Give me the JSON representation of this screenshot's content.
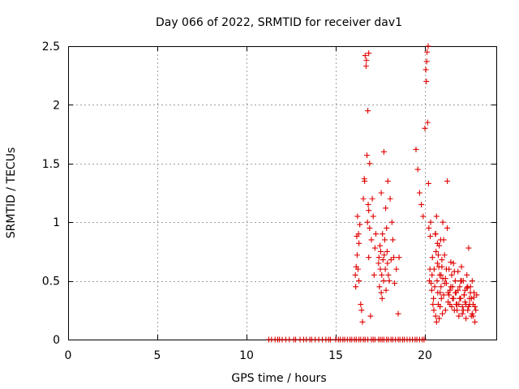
{
  "chart_data": {
    "type": "scatter",
    "title": "Day 066 of 2022, SRMTID for receiver dav1",
    "xlabel": "GPS time / hours",
    "ylabel": "SRMTID / TECUs",
    "xlim": [
      0,
      24
    ],
    "ylim": [
      0,
      2.5
    ],
    "xticks": [
      0,
      5,
      10,
      15,
      20
    ],
    "yticks": [
      0,
      0.5,
      1,
      1.5,
      2,
      2.5
    ],
    "xtick_labels": [
      "0",
      "5",
      "10",
      "15",
      "20"
    ],
    "ytick_labels": [
      "0",
      "0.5",
      "1",
      "1.5",
      "2",
      "2.5"
    ],
    "grid": true,
    "marker": "plus",
    "series": [
      {
        "name": "dav1",
        "color": "#e00000",
        "x": [
          11.25,
          11.4,
          11.6,
          11.75,
          11.85,
          12.0,
          12.2,
          12.4,
          12.65,
          12.75,
          13.0,
          13.2,
          13.35,
          13.55,
          13.65,
          13.85,
          14.05,
          14.25,
          14.45,
          14.6,
          14.7,
          15.0,
          15.15,
          15.25,
          15.4,
          15.5,
          15.65,
          15.8,
          15.9,
          16.05,
          16.15,
          16.3,
          16.4,
          16.55,
          16.65,
          16.8,
          17.0,
          17.1,
          17.2,
          17.4,
          17.5,
          17.6,
          17.7,
          17.85,
          17.95,
          18.1,
          18.2,
          18.35,
          18.5,
          18.6,
          18.75,
          18.85,
          19.0,
          19.15,
          19.3,
          19.45,
          19.55,
          19.7,
          19.85,
          19.95,
          16.1,
          16.12,
          16.15,
          16.18,
          16.2,
          16.22,
          16.25,
          16.28,
          16.3,
          16.3,
          16.35,
          16.4,
          16.45,
          16.5,
          16.55,
          16.6,
          16.62,
          16.65,
          16.7,
          16.72,
          16.75,
          16.78,
          16.8,
          16.82,
          16.85,
          16.85,
          16.85,
          16.9,
          16.9,
          16.95,
          17.0,
          17.05,
          17.1,
          17.15,
          17.2,
          17.25,
          17.4,
          17.42,
          17.45,
          17.48,
          17.5,
          17.52,
          17.55,
          17.55,
          17.58,
          17.6,
          17.62,
          17.65,
          17.68,
          17.7,
          17.72,
          17.75,
          17.78,
          17.8,
          17.82,
          17.85,
          17.88,
          17.9,
          17.92,
          17.95,
          18.0,
          18.05,
          18.1,
          18.15,
          18.2,
          18.25,
          18.3,
          18.4,
          18.5,
          18.55,
          19.5,
          19.6,
          19.7,
          19.8,
          19.9,
          20.0,
          20.05,
          20.08,
          20.1,
          20.12,
          20.15,
          20.18,
          20.2,
          20.22,
          20.25,
          20.28,
          20.3,
          20.32,
          20.35,
          20.38,
          20.4,
          20.42,
          20.45,
          20.48,
          20.5,
          20.52,
          20.55,
          20.58,
          20.6,
          20.62,
          20.65,
          20.68,
          20.7,
          20.72,
          20.75,
          20.78,
          20.8,
          20.82,
          20.85,
          20.88,
          20.9,
          20.92,
          20.95,
          20.98,
          21.0,
          21.05,
          21.1,
          21.15,
          21.2,
          21.25,
          21.3,
          21.35,
          21.4,
          21.45,
          21.5,
          21.55,
          21.6,
          21.65,
          21.7,
          21.75,
          21.8,
          21.85,
          21.9,
          21.95,
          22.0,
          22.05,
          22.1,
          22.15,
          22.2,
          22.25,
          22.3,
          22.35,
          22.4,
          22.45,
          22.5,
          22.55,
          22.6,
          22.65,
          22.7,
          22.75,
          22.8,
          22.85,
          22.9,
          20.6,
          20.7,
          20.8,
          20.9,
          21.0,
          21.1,
          21.2,
          21.3,
          21.4,
          21.5,
          21.6,
          21.7,
          21.8,
          21.9,
          22.0,
          22.1,
          22.2,
          22.3,
          22.4,
          22.5,
          22.6,
          22.7,
          22.8,
          20.65,
          20.75,
          20.85,
          20.95,
          21.05,
          21.15,
          21.25,
          21.35,
          21.45,
          21.55,
          21.65,
          21.75,
          21.85,
          21.95,
          22.05,
          22.15,
          22.25,
          22.35,
          22.45,
          22.55,
          22.65,
          22.75
        ],
        "y": [
          0,
          0,
          0,
          0,
          0,
          0,
          0,
          0,
          0,
          0,
          0,
          0,
          0,
          0,
          0,
          0,
          0,
          0,
          0,
          0,
          0,
          0,
          0,
          0,
          0,
          0,
          0,
          0,
          0,
          0,
          0,
          0,
          0,
          0,
          0,
          0,
          0,
          0,
          0,
          0,
          0,
          0,
          0,
          0,
          0,
          0,
          0,
          0,
          0,
          0,
          0,
          0,
          0,
          0,
          0,
          0,
          0,
          0,
          0,
          0,
          0.55,
          0.45,
          0.62,
          0.88,
          0.72,
          1.05,
          0.6,
          0.9,
          0.5,
          0.82,
          0.98,
          0.3,
          0.25,
          0.15,
          1.2,
          1.37,
          1.35,
          2.42,
          2.33,
          2.38,
          1.57,
          1.0,
          1.95,
          1.15,
          0.7,
          1.1,
          2.44,
          1.5,
          0.95,
          0.2,
          0.85,
          1.2,
          1.05,
          0.55,
          0.78,
          0.9,
          0.65,
          0.7,
          0.45,
          0.8,
          0.6,
          0.75,
          0.4,
          1.25,
          0.55,
          0.35,
          0.9,
          0.68,
          0.5,
          1.6,
          0.72,
          0.85,
          0.6,
          1.12,
          0.42,
          0.95,
          0.75,
          0.65,
          1.35,
          0.55,
          0.5,
          1.2,
          0.68,
          1.0,
          0.85,
          0.7,
          0.48,
          0.6,
          0.22,
          0.7,
          1.62,
          1.45,
          1.25,
          1.15,
          1.05,
          1.8,
          2.3,
          2.2,
          2.37,
          2.45,
          1.85,
          2.5,
          1.33,
          0.95,
          0.5,
          0.6,
          0.88,
          1.0,
          0.48,
          0.42,
          0.55,
          0.7,
          0.3,
          0.35,
          0.25,
          0.6,
          0.45,
          0.9,
          0.2,
          0.75,
          0.15,
          0.5,
          0.82,
          0.4,
          0.3,
          0.62,
          0.18,
          0.55,
          0.28,
          0.85,
          0.45,
          0.35,
          0.68,
          0.22,
          0.52,
          0.38,
          0.72,
          0.25,
          0.48,
          1.35,
          0.4,
          0.6,
          0.3,
          0.45,
          0.55,
          0.35,
          0.65,
          0.25,
          0.5,
          0.4,
          0.3,
          0.58,
          0.2,
          0.45,
          0.35,
          0.62,
          0.28,
          0.5,
          0.38,
          0.42,
          0.3,
          0.55,
          0.25,
          0.78,
          0.35,
          0.45,
          0.2,
          0.5,
          0.3,
          0.4,
          0.15,
          0.25,
          0.38,
          0.9,
          0.65,
          0.8,
          0.55,
          1.0,
          0.48,
          0.6,
          0.32,
          0.42,
          0.28,
          0.35,
          0.4,
          0.25,
          0.3,
          0.5,
          0.22,
          0.38,
          0.18,
          0.45,
          0.3,
          0.35,
          0.2,
          0.28,
          1.05,
          0.72,
          0.4,
          0.62,
          0.85,
          0.52,
          0.95,
          0.38,
          0.66,
          0.45,
          0.58,
          0.3,
          0.42,
          0.35,
          0.5,
          0.25,
          0.32,
          0.44,
          0.28,
          0.4,
          0.22,
          0.36
        ]
      }
    ]
  }
}
